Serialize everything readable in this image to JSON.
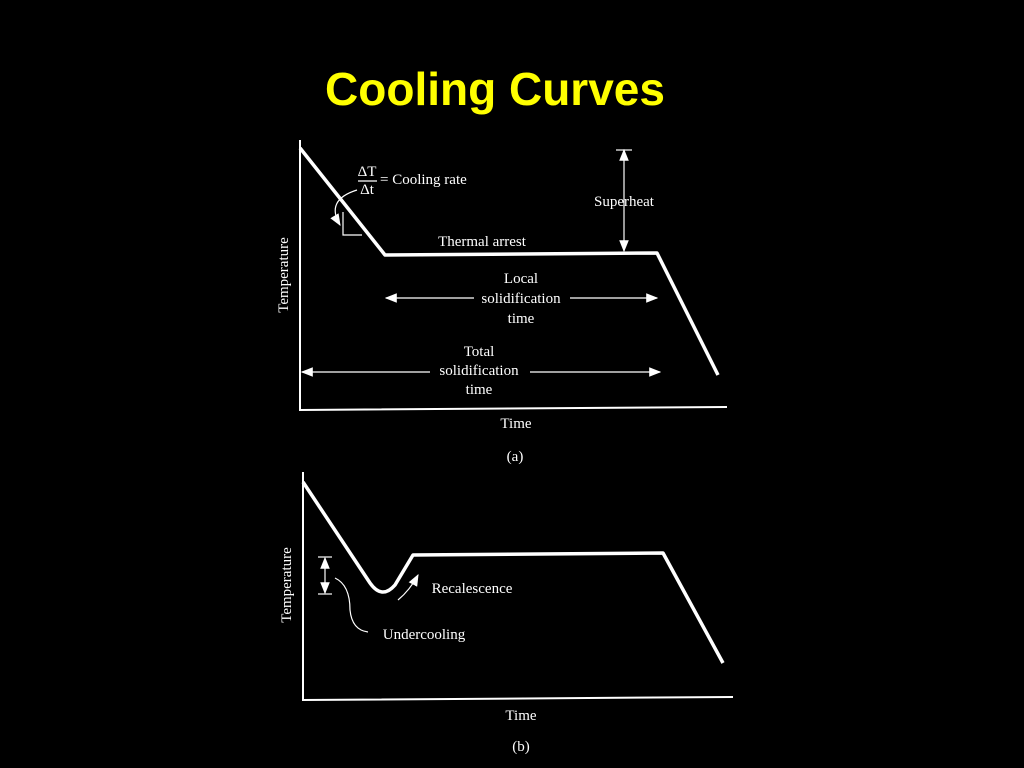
{
  "title": "Cooling Curves",
  "diagram_a": {
    "y_axis_label": "Temperature",
    "x_axis_label": "Time",
    "caption": "(a)",
    "rate_numerator": "ΔT",
    "rate_denominator": "Δt",
    "rate_label": "= Cooling rate",
    "superheat": "Superheat",
    "thermal_arrest": "Thermal arrest",
    "local_time": [
      "Local",
      "solidification",
      "time"
    ],
    "total_time": [
      "Total",
      "solidification",
      "time"
    ]
  },
  "diagram_b": {
    "y_axis_label": "Temperature",
    "x_axis_label": "Time",
    "caption": "(b)",
    "recalescence": "Recalescence",
    "undercooling": "Undercooling"
  }
}
